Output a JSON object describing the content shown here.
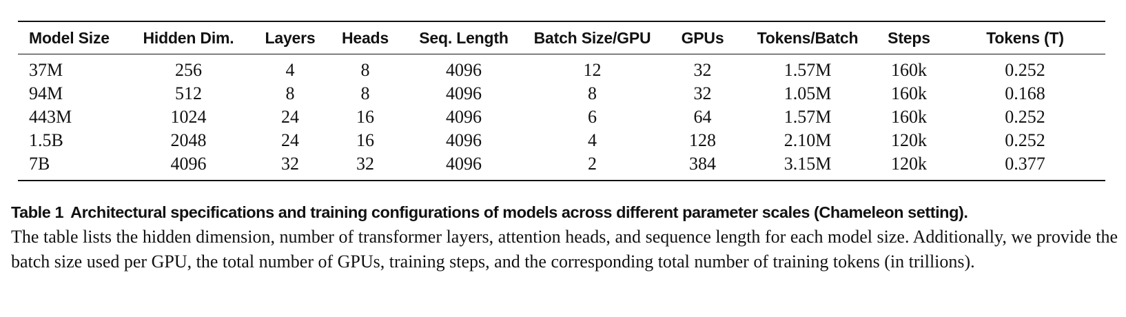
{
  "table": {
    "columns": [
      "Model Size",
      "Hidden Dim.",
      "Layers",
      "Heads",
      "Seq. Length",
      "Batch Size/GPU",
      "GPUs",
      "Tokens/Batch",
      "Steps",
      "Tokens (T)"
    ],
    "rows": [
      [
        "37M",
        "256",
        "4",
        "8",
        "4096",
        "12",
        "32",
        "1.57M",
        "160k",
        "0.252"
      ],
      [
        "94M",
        "512",
        "8",
        "8",
        "4096",
        "8",
        "32",
        "1.05M",
        "160k",
        "0.168"
      ],
      [
        "443M",
        "1024",
        "24",
        "16",
        "4096",
        "6",
        "64",
        "1.57M",
        "160k",
        "0.252"
      ],
      [
        "1.5B",
        "2048",
        "24",
        "16",
        "4096",
        "4",
        "128",
        "2.10M",
        "120k",
        "0.252"
      ],
      [
        "7B",
        "4096",
        "32",
        "32",
        "4096",
        "2",
        "384",
        "3.15M",
        "120k",
        "0.377"
      ]
    ]
  },
  "caption": {
    "label": "Table 1",
    "title": "Architectural specifications and training configurations of models across different parameter scales (Chameleon setting).",
    "body": "The table lists the hidden dimension, number of transformer layers, attention heads, and sequence length for each model size. Additionally, we provide the batch size used per GPU, the total number of GPUs, training steps, and the corresponding total number of training tokens (in trillions)."
  }
}
